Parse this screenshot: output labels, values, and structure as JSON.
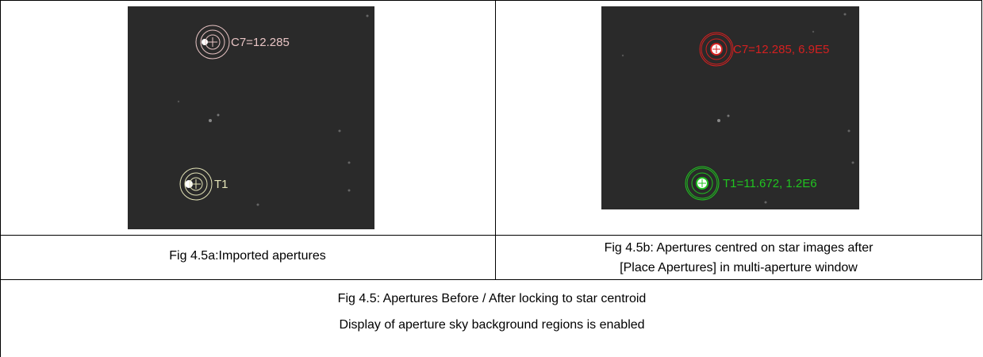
{
  "figures": [
    {
      "labels": [
        "C7=12.285",
        "T1"
      ],
      "caption": "Fig 4.5a:Imported apertures"
    },
    {
      "labels": [
        "C7=12.285, 6.9E5",
        "T1=11.672, 1.2E6"
      ],
      "caption_lines": [
        "Fig 4.5b: Apertures centred on star images after",
        "[Place Apertures] in multi-aperture window"
      ]
    }
  ],
  "footer": [
    "Fig 4.5: Apertures Before / After locking to star centroid",
    "Display of aperture sky background regions is enabled"
  ]
}
